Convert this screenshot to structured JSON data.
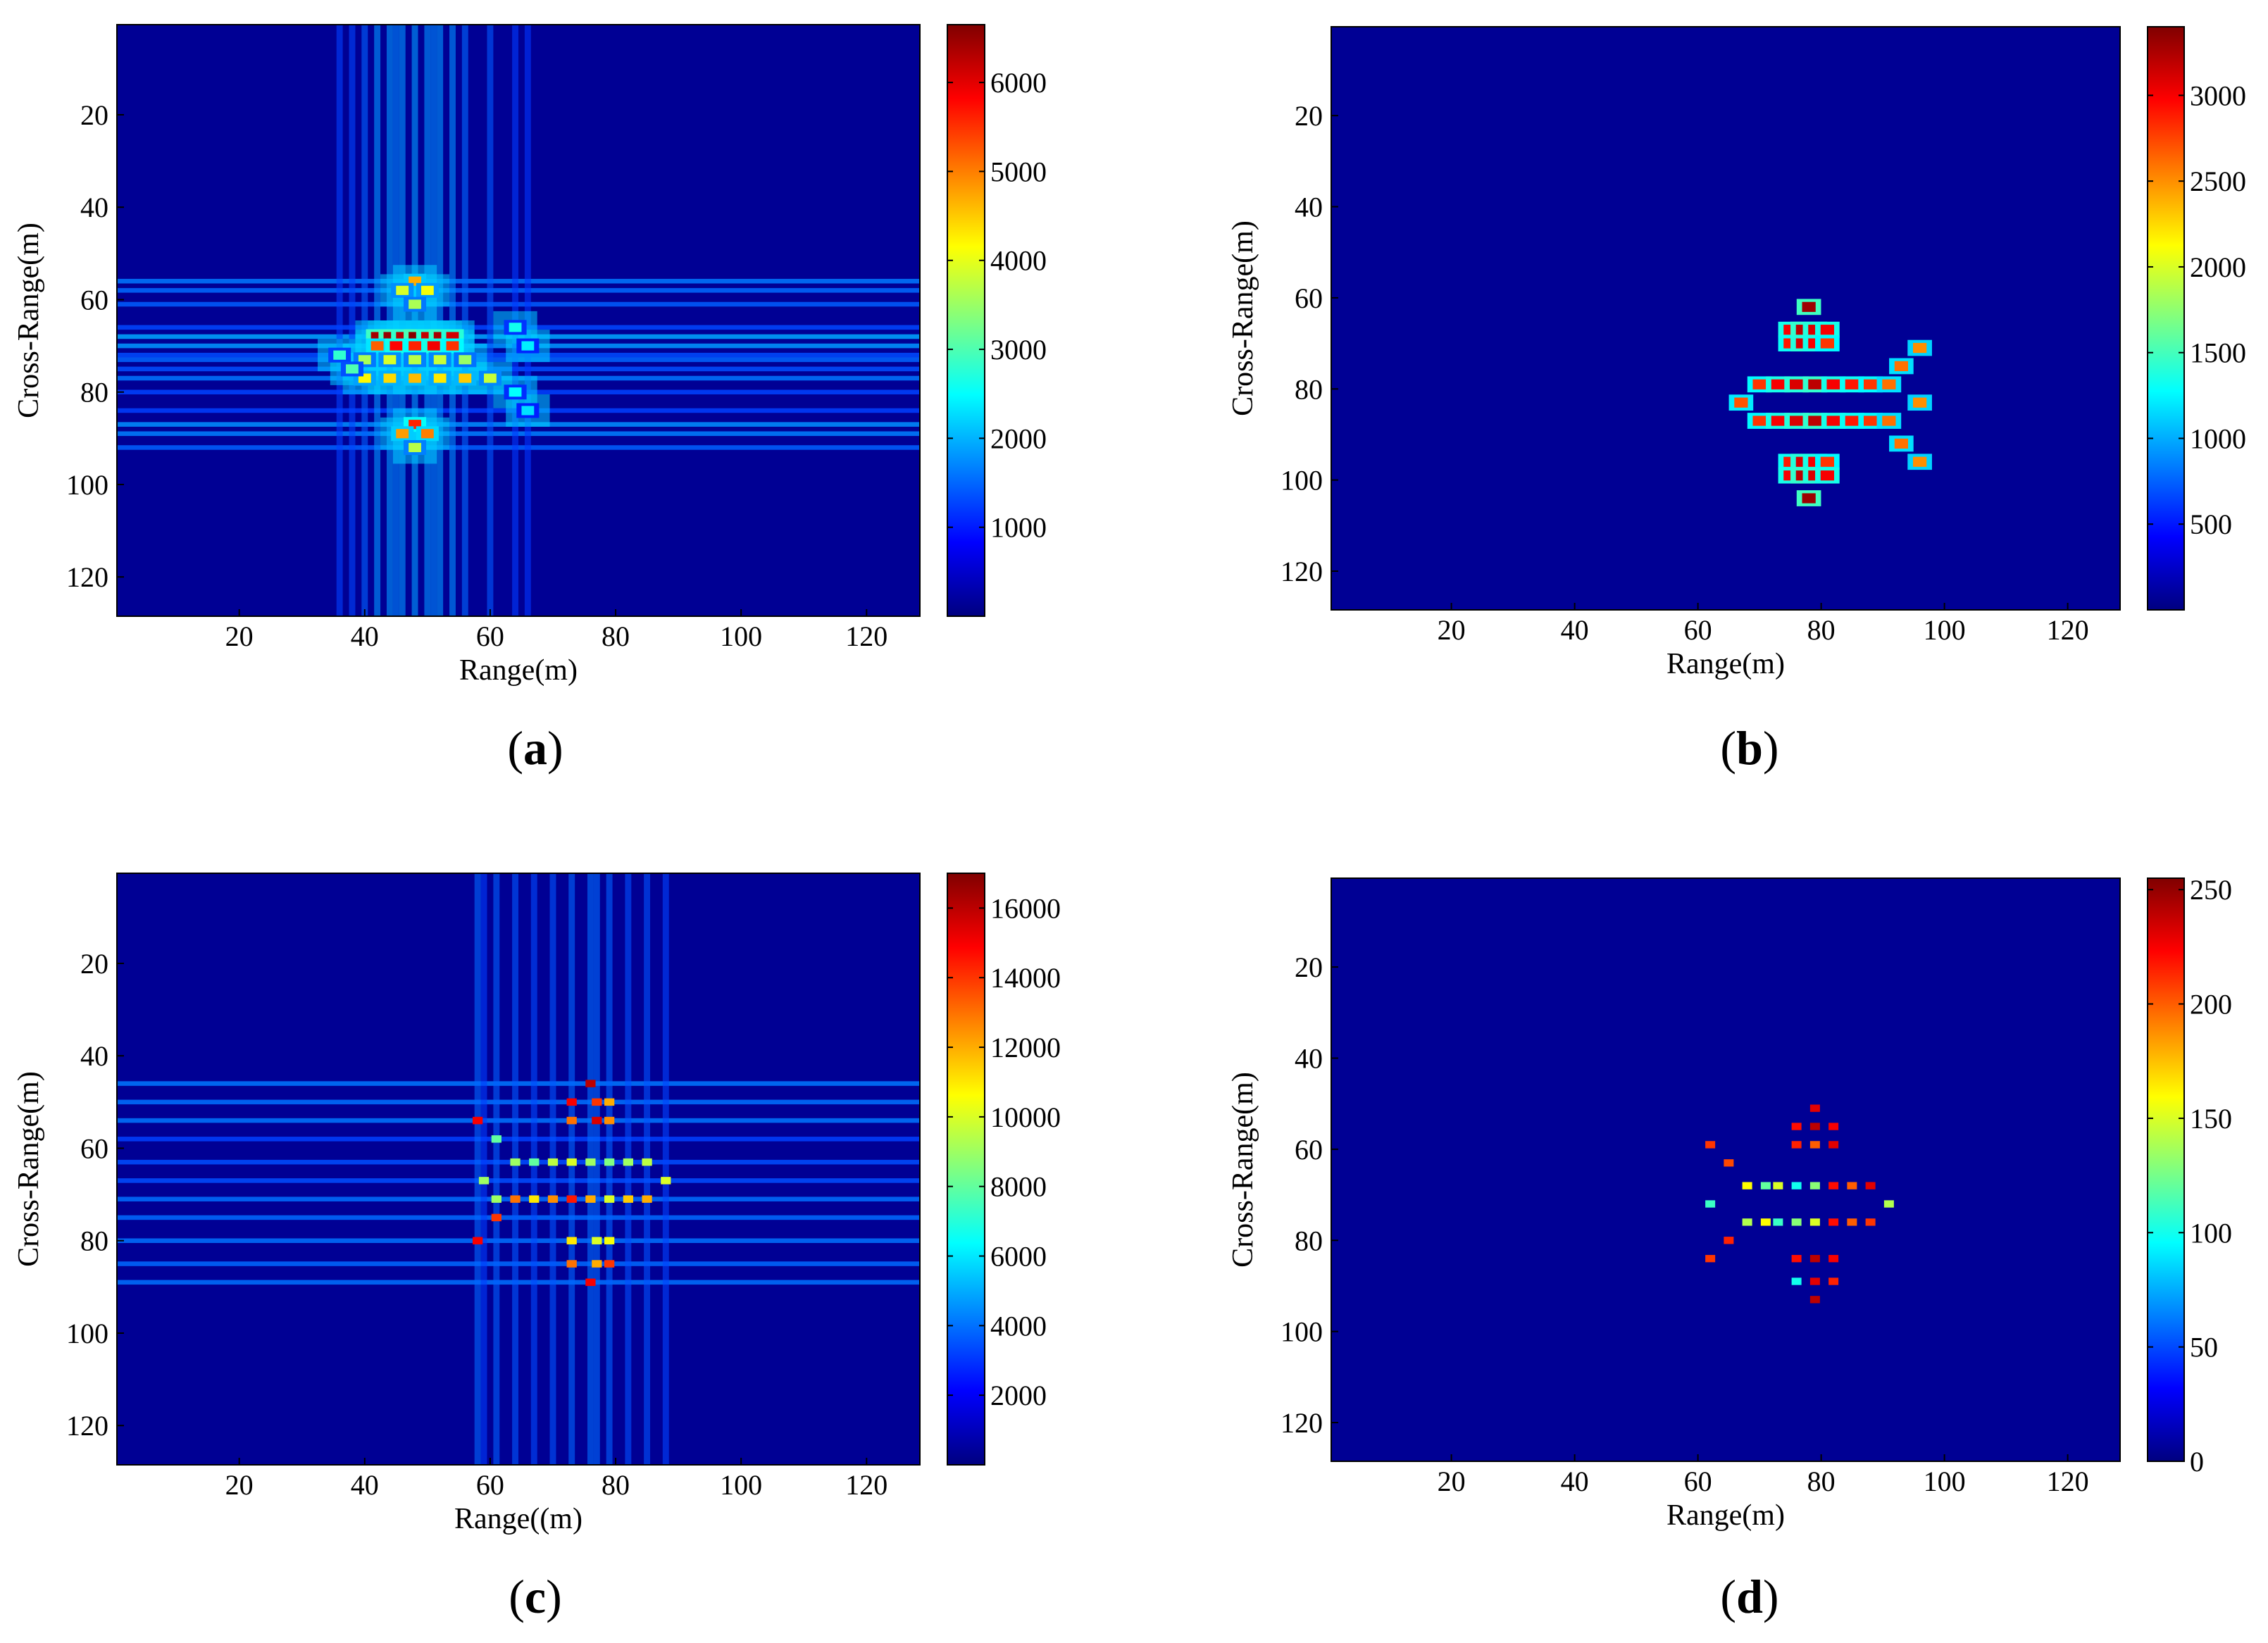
{
  "colormap": "jet",
  "colors": {
    "background": "#ffffff",
    "text": "#000000",
    "plot_bg": "#00008f"
  },
  "chart_data": [
    {
      "type": "heatmap",
      "panel_label": "a",
      "xlabel": "Range(m)",
      "ylabel": "Cross-Range(m)",
      "xlim": [
        0.5,
        128.5
      ],
      "ylim": [
        0.5,
        128.5
      ],
      "y_reversed": true,
      "xticks": [
        20,
        40,
        60,
        80,
        100,
        120
      ],
      "yticks": [
        20,
        40,
        60,
        80,
        100,
        120
      ],
      "clim": [
        0,
        6650
      ],
      "colorbar_ticks": [
        1000,
        2000,
        3000,
        4000,
        5000,
        6000
      ],
      "target_summary": "defocused aircraft image centered near Range 50 m, Cross-Range 72 m with strong horizontal and vertical sidelobe streaks",
      "scatterers": [
        {
          "x": 42,
          "y": 68,
          "v": 6400
        },
        {
          "x": 44,
          "y": 68,
          "v": 6500
        },
        {
          "x": 46,
          "y": 68,
          "v": 6300
        },
        {
          "x": 48,
          "y": 68,
          "v": 6600
        },
        {
          "x": 50,
          "y": 68,
          "v": 6200
        },
        {
          "x": 52,
          "y": 68,
          "v": 6400
        },
        {
          "x": 54,
          "y": 68,
          "v": 6100
        },
        {
          "x": 42,
          "y": 70,
          "v": 5200
        },
        {
          "x": 45,
          "y": 70,
          "v": 5800
        },
        {
          "x": 48,
          "y": 70,
          "v": 5600
        },
        {
          "x": 51,
          "y": 70,
          "v": 5900
        },
        {
          "x": 54,
          "y": 70,
          "v": 5500
        },
        {
          "x": 40,
          "y": 73,
          "v": 3600
        },
        {
          "x": 44,
          "y": 73,
          "v": 3900
        },
        {
          "x": 48,
          "y": 73,
          "v": 3700
        },
        {
          "x": 52,
          "y": 73,
          "v": 3800
        },
        {
          "x": 56,
          "y": 73,
          "v": 3500
        },
        {
          "x": 40,
          "y": 77,
          "v": 4200
        },
        {
          "x": 44,
          "y": 77,
          "v": 4400
        },
        {
          "x": 48,
          "y": 77,
          "v": 4600
        },
        {
          "x": 52,
          "y": 77,
          "v": 4300
        },
        {
          "x": 56,
          "y": 77,
          "v": 4500
        },
        {
          "x": 60,
          "y": 77,
          "v": 3800
        },
        {
          "x": 48,
          "y": 56,
          "v": 4700
        },
        {
          "x": 46,
          "y": 58,
          "v": 3900
        },
        {
          "x": 50,
          "y": 58,
          "v": 4100
        },
        {
          "x": 48,
          "y": 61,
          "v": 3600
        },
        {
          "x": 48,
          "y": 87,
          "v": 5600
        },
        {
          "x": 46,
          "y": 89,
          "v": 4800
        },
        {
          "x": 50,
          "y": 89,
          "v": 5000
        },
        {
          "x": 48,
          "y": 92,
          "v": 3700
        },
        {
          "x": 64,
          "y": 66,
          "v": 2600
        },
        {
          "x": 66,
          "y": 70,
          "v": 2400
        },
        {
          "x": 64,
          "y": 80,
          "v": 2500
        },
        {
          "x": 66,
          "y": 84,
          "v": 2300
        },
        {
          "x": 36,
          "y": 72,
          "v": 2800
        },
        {
          "x": 38,
          "y": 75,
          "v": 3000
        }
      ]
    },
    {
      "type": "heatmap",
      "panel_label": "b",
      "xlabel": "Range(m)",
      "ylabel": "Cross-Range(m)",
      "xlim": [
        0.5,
        128.5
      ],
      "ylim": [
        0.5,
        128.5
      ],
      "y_reversed": true,
      "xticks": [
        20,
        40,
        60,
        80,
        100,
        120
      ],
      "yticks": [
        20,
        40,
        60,
        80,
        100,
        120
      ],
      "clim": [
        0,
        3400
      ],
      "colorbar_ticks": [
        500,
        1000,
        1500,
        2000,
        2500,
        3000
      ],
      "target_summary": "focused aircraft-shaped scatterer image near Range 80 m, Cross-Range 83 m",
      "scatterers": [
        {
          "x": 78,
          "y": 62,
          "v": 3300
        },
        {
          "x": 75,
          "y": 67,
          "v": 3000
        },
        {
          "x": 77,
          "y": 67,
          "v": 3200
        },
        {
          "x": 79,
          "y": 67,
          "v": 3100
        },
        {
          "x": 81,
          "y": 67,
          "v": 3000
        },
        {
          "x": 75,
          "y": 70,
          "v": 2900
        },
        {
          "x": 77,
          "y": 70,
          "v": 3100
        },
        {
          "x": 79,
          "y": 70,
          "v": 3000
        },
        {
          "x": 81,
          "y": 70,
          "v": 2800
        },
        {
          "x": 96,
          "y": 71,
          "v": 2500
        },
        {
          "x": 93,
          "y": 75,
          "v": 2600
        },
        {
          "x": 70,
          "y": 79,
          "v": 2800
        },
        {
          "x": 73,
          "y": 79,
          "v": 3000
        },
        {
          "x": 76,
          "y": 79,
          "v": 3100
        },
        {
          "x": 79,
          "y": 79,
          "v": 3200
        },
        {
          "x": 82,
          "y": 79,
          "v": 3000
        },
        {
          "x": 85,
          "y": 79,
          "v": 2900
        },
        {
          "x": 88,
          "y": 79,
          "v": 2800
        },
        {
          "x": 91,
          "y": 79,
          "v": 2600
        },
        {
          "x": 67,
          "y": 83,
          "v": 2700
        },
        {
          "x": 96,
          "y": 83,
          "v": 2500
        },
        {
          "x": 70,
          "y": 87,
          "v": 2800
        },
        {
          "x": 73,
          "y": 87,
          "v": 3000
        },
        {
          "x": 76,
          "y": 87,
          "v": 3100
        },
        {
          "x": 79,
          "y": 87,
          "v": 3200
        },
        {
          "x": 82,
          "y": 87,
          "v": 3000
        },
        {
          "x": 85,
          "y": 87,
          "v": 2900
        },
        {
          "x": 88,
          "y": 87,
          "v": 2800
        },
        {
          "x": 91,
          "y": 87,
          "v": 2600
        },
        {
          "x": 93,
          "y": 92,
          "v": 2600
        },
        {
          "x": 96,
          "y": 96,
          "v": 2500
        },
        {
          "x": 75,
          "y": 96,
          "v": 2900
        },
        {
          "x": 77,
          "y": 96,
          "v": 3100
        },
        {
          "x": 79,
          "y": 96,
          "v": 3000
        },
        {
          "x": 81,
          "y": 96,
          "v": 2800
        },
        {
          "x": 75,
          "y": 99,
          "v": 3000
        },
        {
          "x": 77,
          "y": 99,
          "v": 3200
        },
        {
          "x": 79,
          "y": 99,
          "v": 3100
        },
        {
          "x": 81,
          "y": 99,
          "v": 3000
        },
        {
          "x": 78,
          "y": 104,
          "v": 3300
        }
      ]
    },
    {
      "type": "heatmap",
      "panel_label": "c",
      "xlabel": "Range((m)",
      "ylabel": "Cross-Range(m)",
      "xlim": [
        0.5,
        128.5
      ],
      "ylim": [
        0.5,
        128.5
      ],
      "y_reversed": true,
      "xticks": [
        20,
        40,
        60,
        80,
        100,
        120
      ],
      "yticks": [
        20,
        40,
        60,
        80,
        100,
        120
      ],
      "clim": [
        0,
        17000
      ],
      "colorbar_ticks": [
        2000,
        4000,
        6000,
        8000,
        10000,
        12000,
        14000,
        16000
      ],
      "target_summary": "partially focused aircraft near Range 75 m, Cross-Range 67 m with horizontal streaks at Cross-Range 63 and 71",
      "scatterers": [
        {
          "x": 76,
          "y": 46,
          "v": 16000
        },
        {
          "x": 73,
          "y": 50,
          "v": 15000
        },
        {
          "x": 77,
          "y": 50,
          "v": 14000
        },
        {
          "x": 79,
          "y": 50,
          "v": 12000
        },
        {
          "x": 73,
          "y": 54,
          "v": 13000
        },
        {
          "x": 77,
          "y": 54,
          "v": 15500
        },
        {
          "x": 79,
          "y": 54,
          "v": 12500
        },
        {
          "x": 58,
          "y": 54,
          "v": 15000
        },
        {
          "x": 61,
          "y": 58,
          "v": 8000
        },
        {
          "x": 64,
          "y": 63,
          "v": 9000
        },
        {
          "x": 67,
          "y": 63,
          "v": 8000
        },
        {
          "x": 70,
          "y": 63,
          "v": 9500
        },
        {
          "x": 73,
          "y": 63,
          "v": 10000
        },
        {
          "x": 76,
          "y": 63,
          "v": 9000
        },
        {
          "x": 79,
          "y": 63,
          "v": 8500
        },
        {
          "x": 82,
          "y": 63,
          "v": 9000
        },
        {
          "x": 85,
          "y": 63,
          "v": 9500
        },
        {
          "x": 59,
          "y": 67,
          "v": 9000
        },
        {
          "x": 88,
          "y": 67,
          "v": 10000
        },
        {
          "x": 61,
          "y": 71,
          "v": 9000
        },
        {
          "x": 64,
          "y": 71,
          "v": 13000
        },
        {
          "x": 67,
          "y": 71,
          "v": 11000
        },
        {
          "x": 70,
          "y": 71,
          "v": 12500
        },
        {
          "x": 73,
          "y": 71,
          "v": 14500
        },
        {
          "x": 76,
          "y": 71,
          "v": 12000
        },
        {
          "x": 79,
          "y": 71,
          "v": 10000
        },
        {
          "x": 82,
          "y": 71,
          "v": 11500
        },
        {
          "x": 85,
          "y": 71,
          "v": 12000
        },
        {
          "x": 61,
          "y": 75,
          "v": 14000
        },
        {
          "x": 58,
          "y": 80,
          "v": 15000
        },
        {
          "x": 73,
          "y": 80,
          "v": 11000
        },
        {
          "x": 77,
          "y": 80,
          "v": 10000
        },
        {
          "x": 79,
          "y": 80,
          "v": 10500
        },
        {
          "x": 73,
          "y": 85,
          "v": 13000
        },
        {
          "x": 77,
          "y": 85,
          "v": 12000
        },
        {
          "x": 79,
          "y": 85,
          "v": 14000
        },
        {
          "x": 76,
          "y": 89,
          "v": 15000
        }
      ]
    },
    {
      "type": "heatmap",
      "panel_label": "d",
      "xlabel": "Range(m)",
      "ylabel": "Cross-Range(m)",
      "xlim": [
        0.5,
        128.5
      ],
      "ylim": [
        0.5,
        128.5
      ],
      "y_reversed": true,
      "xticks": [
        20,
        40,
        60,
        80,
        100,
        120
      ],
      "yticks": [
        20,
        40,
        60,
        80,
        100,
        120
      ],
      "clim": [
        0,
        255
      ],
      "colorbar_ticks": [
        0,
        50,
        100,
        150,
        200,
        250
      ],
      "target_summary": "sparse focused aircraft scatterers near Range 78 m, Cross-Range 72 m",
      "scatterers": [
        {
          "x": 79,
          "y": 51,
          "v": 230
        },
        {
          "x": 76,
          "y": 55,
          "v": 220
        },
        {
          "x": 79,
          "y": 55,
          "v": 240
        },
        {
          "x": 82,
          "y": 55,
          "v": 225
        },
        {
          "x": 76,
          "y": 59,
          "v": 215
        },
        {
          "x": 79,
          "y": 59,
          "v": 200
        },
        {
          "x": 82,
          "y": 59,
          "v": 230
        },
        {
          "x": 62,
          "y": 59,
          "v": 210
        },
        {
          "x": 65,
          "y": 63,
          "v": 205
        },
        {
          "x": 68,
          "y": 68,
          "v": 160
        },
        {
          "x": 71,
          "y": 68,
          "v": 120
        },
        {
          "x": 73,
          "y": 68,
          "v": 150
        },
        {
          "x": 76,
          "y": 68,
          "v": 100
        },
        {
          "x": 79,
          "y": 68,
          "v": 130
        },
        {
          "x": 82,
          "y": 68,
          "v": 220
        },
        {
          "x": 85,
          "y": 68,
          "v": 200
        },
        {
          "x": 88,
          "y": 68,
          "v": 230
        },
        {
          "x": 62,
          "y": 72,
          "v": 110
        },
        {
          "x": 91,
          "y": 72,
          "v": 140
        },
        {
          "x": 68,
          "y": 76,
          "v": 140
        },
        {
          "x": 71,
          "y": 76,
          "v": 160
        },
        {
          "x": 73,
          "y": 76,
          "v": 110
        },
        {
          "x": 76,
          "y": 76,
          "v": 130
        },
        {
          "x": 79,
          "y": 76,
          "v": 150
        },
        {
          "x": 82,
          "y": 76,
          "v": 220
        },
        {
          "x": 85,
          "y": 76,
          "v": 200
        },
        {
          "x": 88,
          "y": 76,
          "v": 210
        },
        {
          "x": 65,
          "y": 80,
          "v": 215
        },
        {
          "x": 62,
          "y": 84,
          "v": 210
        },
        {
          "x": 76,
          "y": 84,
          "v": 220
        },
        {
          "x": 79,
          "y": 84,
          "v": 240
        },
        {
          "x": 82,
          "y": 84,
          "v": 225
        },
        {
          "x": 76,
          "y": 89,
          "v": 100
        },
        {
          "x": 79,
          "y": 89,
          "v": 230
        },
        {
          "x": 82,
          "y": 89,
          "v": 215
        },
        {
          "x": 79,
          "y": 93,
          "v": 240
        }
      ]
    }
  ]
}
